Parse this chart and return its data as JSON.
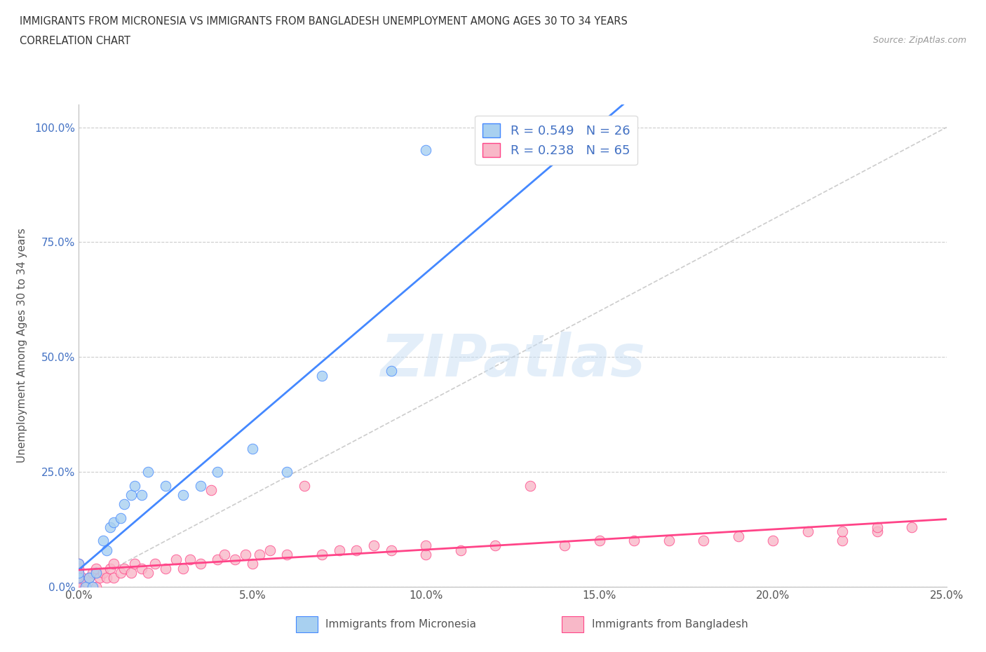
{
  "title_line1": "IMMIGRANTS FROM MICRONESIA VS IMMIGRANTS FROM BANGLADESH UNEMPLOYMENT AMONG AGES 30 TO 34 YEARS",
  "title_line2": "CORRELATION CHART",
  "source": "Source: ZipAtlas.com",
  "ylabel": "Unemployment Among Ages 30 to 34 years",
  "xlim": [
    0.0,
    0.25
  ],
  "ylim": [
    0.0,
    1.05
  ],
  "xticks": [
    0.0,
    0.05,
    0.1,
    0.15,
    0.2,
    0.25
  ],
  "xticklabels": [
    "0.0%",
    "5.0%",
    "10.0%",
    "15.0%",
    "20.0%",
    "25.0%"
  ],
  "yticks": [
    0.0,
    0.25,
    0.5,
    0.75,
    1.0
  ],
  "yticklabels": [
    "0.0%",
    "25.0%",
    "50.0%",
    "75.0%",
    "100.0%"
  ],
  "micronesia_color": "#a8d0f0",
  "bangladesh_color": "#f8b8c8",
  "trendline_micronesia_color": "#4488ff",
  "trendline_bangladesh_color": "#ff4488",
  "diagonal_color": "#c0c0c0",
  "watermark_text": "ZIPatlas",
  "legend_r_micronesia": "R = 0.549",
  "legend_n_micronesia": "N = 26",
  "legend_r_bangladesh": "R = 0.238",
  "legend_n_bangladesh": "N = 65",
  "micronesia_x": [
    0.0,
    0.0,
    0.0,
    0.002,
    0.003,
    0.004,
    0.005,
    0.007,
    0.008,
    0.009,
    0.01,
    0.012,
    0.013,
    0.015,
    0.016,
    0.018,
    0.02,
    0.025,
    0.03,
    0.035,
    0.04,
    0.05,
    0.06,
    0.07,
    0.09,
    0.1
  ],
  "micronesia_y": [
    0.02,
    0.03,
    0.05,
    0.0,
    0.02,
    0.0,
    0.03,
    0.1,
    0.08,
    0.13,
    0.14,
    0.15,
    0.18,
    0.2,
    0.22,
    0.2,
    0.25,
    0.22,
    0.2,
    0.22,
    0.25,
    0.3,
    0.25,
    0.46,
    0.47,
    0.95
  ],
  "bangladesh_x": [
    0.0,
    0.0,
    0.0,
    0.0,
    0.0,
    0.0,
    0.0,
    0.0,
    0.001,
    0.002,
    0.003,
    0.004,
    0.005,
    0.005,
    0.006,
    0.007,
    0.008,
    0.009,
    0.01,
    0.01,
    0.012,
    0.013,
    0.015,
    0.016,
    0.018,
    0.02,
    0.022,
    0.025,
    0.028,
    0.03,
    0.032,
    0.035,
    0.038,
    0.04,
    0.042,
    0.045,
    0.048,
    0.05,
    0.052,
    0.055,
    0.06,
    0.065,
    0.07,
    0.075,
    0.08,
    0.085,
    0.09,
    0.1,
    0.1,
    0.11,
    0.12,
    0.13,
    0.14,
    0.15,
    0.16,
    0.17,
    0.18,
    0.19,
    0.2,
    0.21,
    0.22,
    0.22,
    0.23,
    0.23,
    0.24
  ],
  "bangladesh_y": [
    0.0,
    0.0,
    0.0,
    0.01,
    0.02,
    0.03,
    0.04,
    0.05,
    0.02,
    0.01,
    0.02,
    0.03,
    0.0,
    0.04,
    0.02,
    0.03,
    0.02,
    0.04,
    0.02,
    0.05,
    0.03,
    0.04,
    0.03,
    0.05,
    0.04,
    0.03,
    0.05,
    0.04,
    0.06,
    0.04,
    0.06,
    0.05,
    0.21,
    0.06,
    0.07,
    0.06,
    0.07,
    0.05,
    0.07,
    0.08,
    0.07,
    0.22,
    0.07,
    0.08,
    0.08,
    0.09,
    0.08,
    0.07,
    0.09,
    0.08,
    0.09,
    0.22,
    0.09,
    0.1,
    0.1,
    0.1,
    0.1,
    0.11,
    0.1,
    0.12,
    0.1,
    0.12,
    0.12,
    0.13,
    0.13
  ]
}
